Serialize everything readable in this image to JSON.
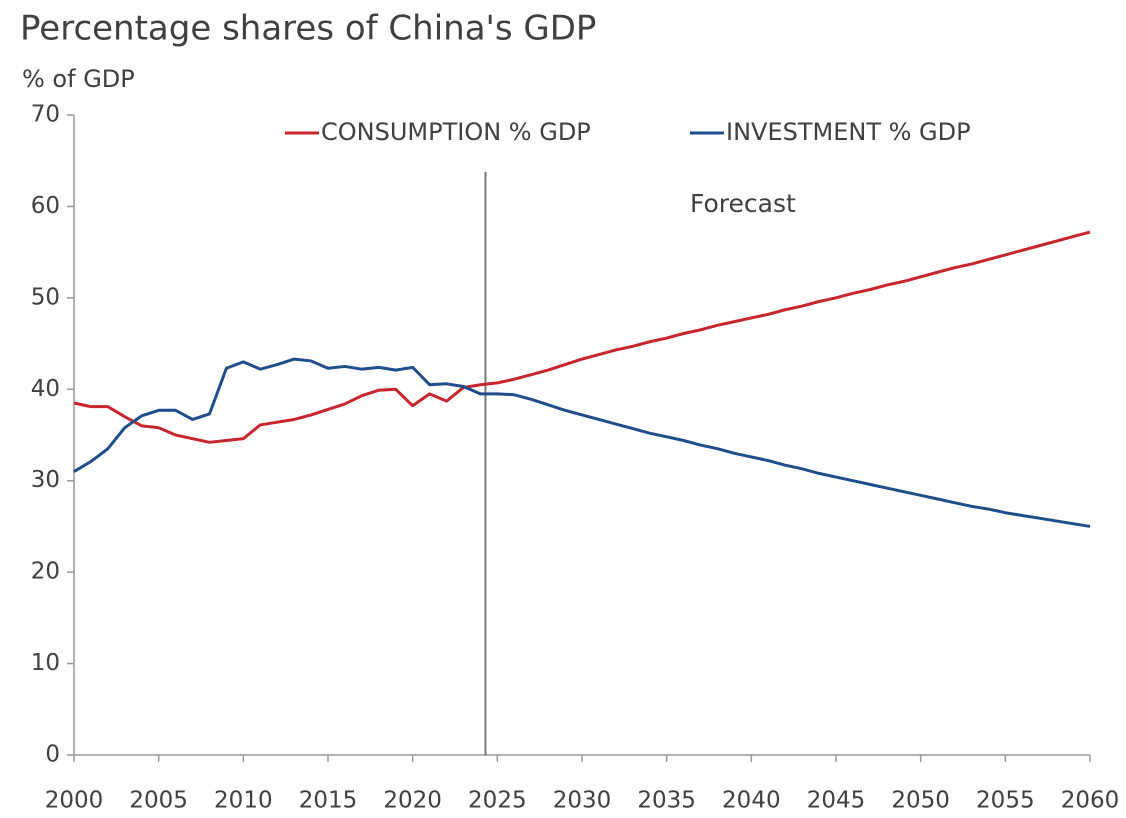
{
  "chart_data": {
    "type": "line",
    "title": "Percentage shares of China's GDP",
    "y_label": "% of GDP",
    "annotation": "Forecast",
    "forecast_line_x": 2024.3,
    "x": [
      2000,
      2001,
      2002,
      2003,
      2004,
      2005,
      2006,
      2007,
      2008,
      2009,
      2010,
      2011,
      2012,
      2013,
      2014,
      2015,
      2016,
      2017,
      2018,
      2019,
      2020,
      2021,
      2022,
      2023,
      2024,
      2025,
      2026,
      2027,
      2028,
      2029,
      2030,
      2031,
      2032,
      2033,
      2034,
      2035,
      2036,
      2037,
      2038,
      2039,
      2040,
      2041,
      2042,
      2043,
      2044,
      2045,
      2046,
      2047,
      2048,
      2049,
      2050,
      2051,
      2052,
      2053,
      2054,
      2055,
      2056,
      2057,
      2058,
      2059,
      2060
    ],
    "series": [
      {
        "name": "CONSUMPTION % GDP",
        "color": "#c8252c",
        "values": [
          38.5,
          38.1,
          38.1,
          37.0,
          36.0,
          35.8,
          35.0,
          34.6,
          34.2,
          34.4,
          34.6,
          36.1,
          36.4,
          36.7,
          37.2,
          37.8,
          38.4,
          39.3,
          39.9,
          40.0,
          38.2,
          39.5,
          38.7,
          40.2,
          40.5,
          40.7,
          41.1,
          41.6,
          42.1,
          42.7,
          43.3,
          43.8,
          44.3,
          44.7,
          45.2,
          45.6,
          46.1,
          46.5,
          47.0,
          47.4,
          47.8,
          48.2,
          48.7,
          49.1,
          49.6,
          50.0,
          50.5,
          50.9,
          51.4,
          51.8,
          52.3,
          52.8,
          53.3,
          53.7,
          54.2,
          54.7,
          55.2,
          55.7,
          56.2,
          56.7,
          57.2
        ]
      },
      {
        "name": "INVESTMENT % GDP",
        "color": "#1f4e8c",
        "values": [
          31.0,
          32.1,
          33.5,
          35.8,
          37.1,
          37.7,
          37.7,
          36.7,
          37.3,
          42.3,
          43.0,
          42.2,
          42.7,
          43.3,
          43.1,
          42.3,
          42.5,
          42.2,
          42.4,
          42.1,
          42.4,
          40.5,
          40.6,
          40.3,
          39.5,
          39.5,
          39.4,
          38.9,
          38.3,
          37.7,
          37.2,
          36.7,
          36.2,
          35.7,
          35.2,
          34.8,
          34.4,
          33.9,
          33.5,
          33.0,
          32.6,
          32.2,
          31.7,
          31.3,
          30.8,
          30.4,
          30.0,
          29.6,
          29.2,
          28.8,
          28.4,
          28.0,
          27.6,
          27.2,
          26.9,
          26.5,
          26.2,
          25.9,
          25.6,
          25.3,
          25.0
        ]
      }
    ],
    "xlim": [
      2000,
      2060
    ],
    "xticks": [
      2000,
      2005,
      2010,
      2015,
      2020,
      2025,
      2030,
      2035,
      2040,
      2045,
      2050,
      2055,
      2060
    ],
    "ylim": [
      0,
      70
    ],
    "yticks": [
      0,
      10,
      20,
      30,
      40,
      50,
      60,
      70
    ],
    "grid": false
  }
}
